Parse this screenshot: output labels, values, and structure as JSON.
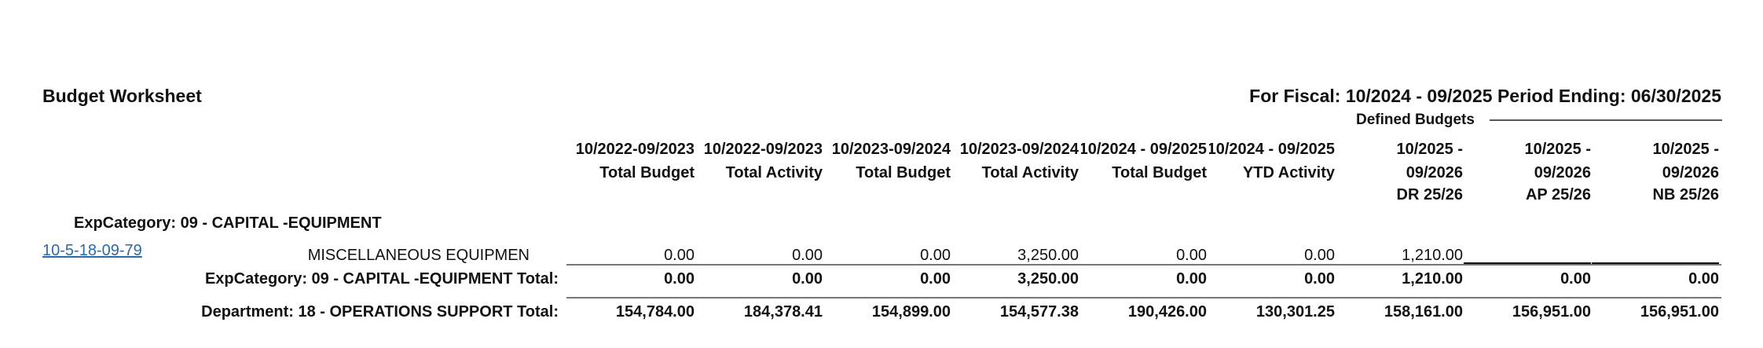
{
  "header": {
    "title": "Budget Worksheet",
    "fiscal": "For Fiscal: 10/2024 - 09/2025 Period Ending: 06/30/2025",
    "group_label": "Defined Budgets"
  },
  "columns": [
    [
      "10/2022-09/2023",
      "Total Budget"
    ],
    [
      "10/2022-09/2023",
      "Total Activity"
    ],
    [
      "10/2023-09/2024",
      "Total Budget"
    ],
    [
      "10/2023-09/2024",
      "Total Activity"
    ],
    [
      "10/2024 - 09/2025",
      "Total Budget"
    ],
    [
      "10/2024 - 09/2025",
      "YTD Activity"
    ],
    [
      "10/2025 -",
      "09/2026",
      "DR 25/26"
    ],
    [
      "10/2025 -",
      "09/2026",
      "AP 25/26"
    ],
    [
      "10/2025 -",
      "09/2026",
      "NB 25/26"
    ]
  ],
  "category": "ExpCategory: 09 - CAPITAL -EQUIPMENT",
  "rows": [
    {
      "account": "10-5-18-09-79",
      "description": "MISCELLANEOUS EQUIPMEN",
      "values": [
        "0.00",
        "0.00",
        "0.00",
        "3,250.00",
        "0.00",
        "0.00",
        "1,210.00"
      ]
    }
  ],
  "category_total": {
    "label": "ExpCategory: 09 - CAPITAL -EQUIPMENT Total:",
    "values": [
      "0.00",
      "0.00",
      "0.00",
      "3,250.00",
      "0.00",
      "0.00",
      "1,210.00",
      "0.00",
      "0.00"
    ]
  },
  "department_total": {
    "label": "Department: 18 - OPERATIONS SUPPORT Total:",
    "values": [
      "154,784.00",
      "184,378.41",
      "154,899.00",
      "154,577.38",
      "190,426.00",
      "130,301.25",
      "158,161.00",
      "156,951.00",
      "156,951.00"
    ]
  }
}
